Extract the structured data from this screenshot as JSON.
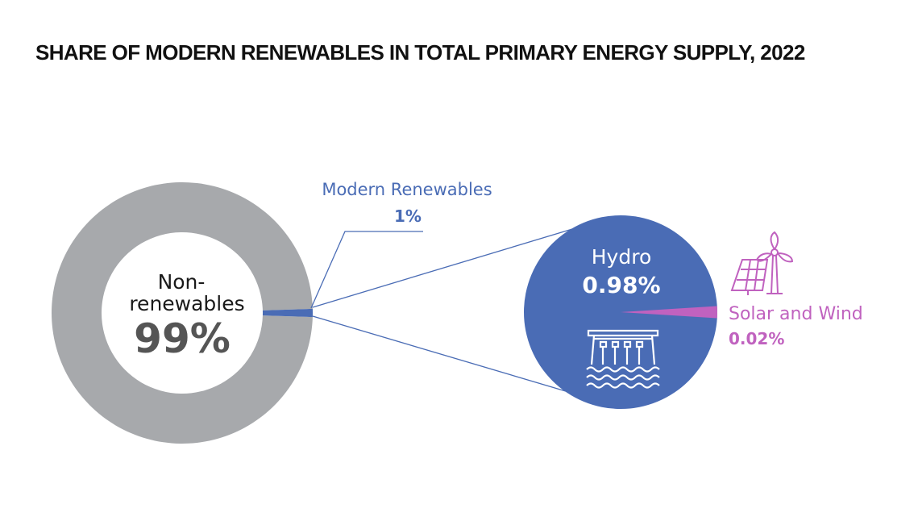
{
  "title": "SHARE OF MODERN RENEWABLES IN TOTAL PRIMARY ENERGY SUPPLY, 2022",
  "colors": {
    "non_renewables": "#a7a9ac",
    "modern_renewables": "#4a6cb5",
    "hydro": "#4a6cb5",
    "solar_wind": "#c062bf",
    "callout_line": "#4a6cb5",
    "center_text": "#1a1a1a",
    "center_value": "#555555"
  },
  "icons": {
    "hydro": "hydro-dam-icon",
    "solar_wind": "solar-wind-icon"
  },
  "chart_data": [
    {
      "type": "pie",
      "style": "donut",
      "slices": [
        {
          "label_line1": "Non-",
          "label_line2": "renewables",
          "value": 99,
          "display": "99%"
        },
        {
          "label": "Modern Renewables",
          "value": 1,
          "display": "1%"
        }
      ]
    },
    {
      "type": "pie",
      "breakdown_of": "Modern Renewables",
      "slices": [
        {
          "label": "Hydro",
          "value": 0.98,
          "display": "0.98%"
        },
        {
          "label": "Solar and Wind",
          "value": 0.02,
          "display": "0.02%"
        }
      ]
    }
  ]
}
